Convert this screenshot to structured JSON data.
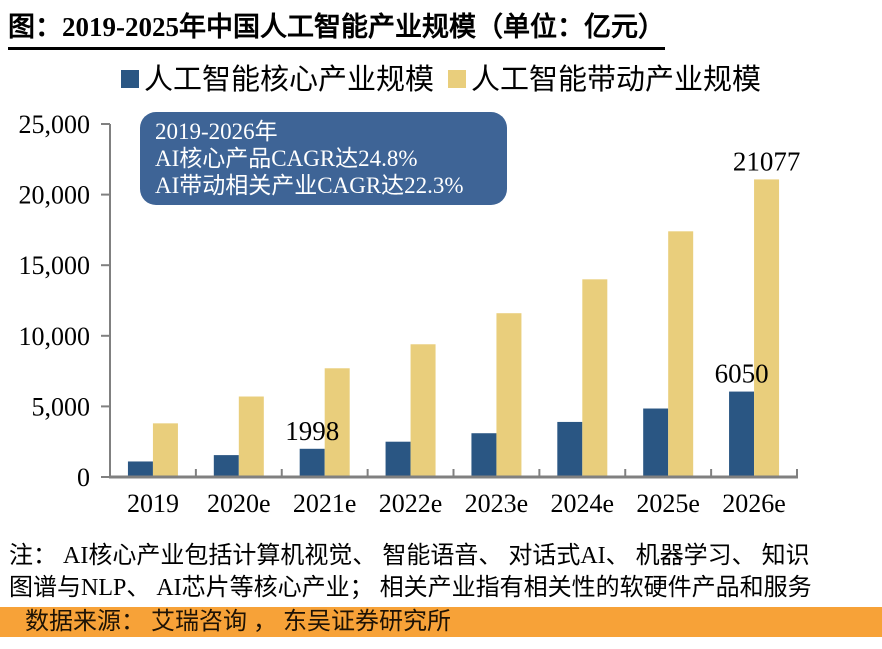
{
  "title": "图：2019-2025年中国人工智能产业规模（单位：亿元）",
  "legend": [
    {
      "label": "人工智能核心产业规模",
      "color": "#2A5683"
    },
    {
      "label": "人工智能带动产业规模",
      "color": "#E9CE7C"
    }
  ],
  "annotation": {
    "bg": "#3E6496",
    "line1": "2019-2026年",
    "line2": "AI核心产品CAGR达24.8%",
    "line3": "AI带动相关产业CAGR达22.3%"
  },
  "chart_data": {
    "type": "bar",
    "title": "图：2019-2025年中国人工智能产业规模（单位：亿元）",
    "unit": "亿元",
    "categories": [
      "2019",
      "2020e",
      "2021e",
      "2022e",
      "2023e",
      "2024e",
      "2025e",
      "2026e"
    ],
    "series": [
      {
        "name": "人工智能核心产业规模",
        "color": "#2A5683",
        "values": [
          1100,
          1550,
          1998,
          2500,
          3100,
          3900,
          4850,
          6050
        ]
      },
      {
        "name": "人工智能带动产业规模",
        "color": "#E9CE7C",
        "values": [
          3800,
          5700,
          7700,
          9400,
          11600,
          14000,
          17400,
          21077
        ]
      }
    ],
    "ylim": [
      0,
      25000
    ],
    "ytick_step": 5000,
    "yticklabels": [
      "0",
      "5,000",
      "10,000",
      "15,000",
      "20,000",
      "25,000"
    ],
    "grid": false,
    "legend_position": "top",
    "axis_color": "#808080",
    "value_labels": [
      {
        "series": 0,
        "index": 2,
        "text": "1998"
      },
      {
        "series": 0,
        "index": 7,
        "text": "6050"
      },
      {
        "series": 1,
        "index": 7,
        "text": "21077"
      }
    ]
  },
  "notes": {
    "line1": "注：  AI核心产业包括计算机视觉、 智能语音、 对话式AI、 机器学习、 知识",
    "line2": "图谱与NLP、 AI芯片等核心产业；  相关产业指有相关性的软硬件产品和服务"
  },
  "source_bar": {
    "bg": "#F7A238",
    "text": "数据来源：  艾瑞咨询 ，  东吴证券研究所"
  }
}
